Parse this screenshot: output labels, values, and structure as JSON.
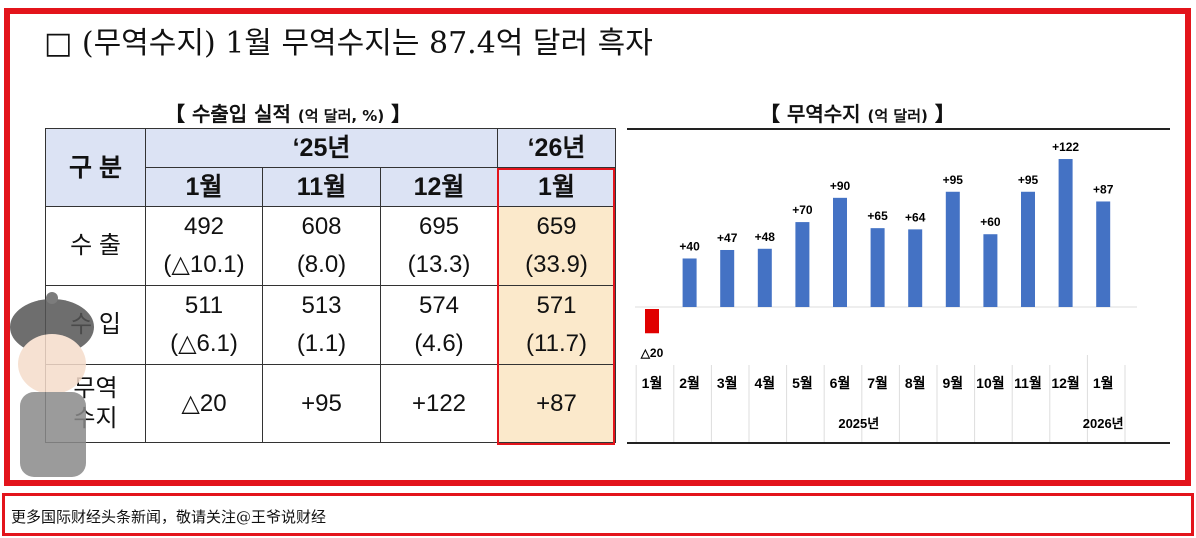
{
  "headline": "□ (무역수지) 1월 무역수지는 87.4억 달러 흑자",
  "table": {
    "title": "【 수출입 실적 ",
    "unit": "(억 달러, %)",
    "title_end": " 】",
    "corner": "구 분",
    "years": [
      "‘25년",
      "‘26년"
    ],
    "months": [
      "1월",
      "11월",
      "12월",
      "1월"
    ],
    "rows": [
      {
        "label": "수 출",
        "values": [
          "492",
          "608",
          "695",
          "659"
        ],
        "changes": [
          "(△10.1)",
          "(8.0)",
          "(13.3)",
          "(33.9)"
        ]
      },
      {
        "label": "수 입",
        "values": [
          "511",
          "513",
          "574",
          "571"
        ],
        "changes": [
          "(△6.1)",
          "(1.1)",
          "(4.6)",
          "(11.7)"
        ]
      },
      {
        "label": "무역\n수지",
        "values": [
          "△20",
          "+95",
          "+122",
          "+87"
        ]
      }
    ]
  },
  "chart_title": "【 무역수지 ",
  "chart_unit": "(억 달러)",
  "chart_title_end": " 】",
  "chart_data": {
    "type": "bar",
    "title": "무역수지 (억 달러)",
    "categories": [
      "1월",
      "2월",
      "3월",
      "4월",
      "5월",
      "6월",
      "7월",
      "8월",
      "9월",
      "10월",
      "11월",
      "12월",
      "1월"
    ],
    "values": [
      -20,
      40,
      47,
      48,
      70,
      90,
      65,
      64,
      95,
      60,
      95,
      122,
      87
    ],
    "labels": [
      "△20",
      "+40",
      "+47",
      "+48",
      "+70",
      "+90",
      "+65",
      "+64",
      "+95",
      "+60",
      "+95",
      "+122",
      "+87"
    ],
    "year_groups": [
      {
        "label": "2025년",
        "span": 12
      },
      {
        "label": "2026년",
        "span": 1
      }
    ],
    "colors": {
      "positive": "#4472c4",
      "negative": "#e00000"
    },
    "ylim": [
      -20,
      130
    ]
  },
  "footer": "更多国际财经头条新闻，敬请关注@王爷说财经"
}
